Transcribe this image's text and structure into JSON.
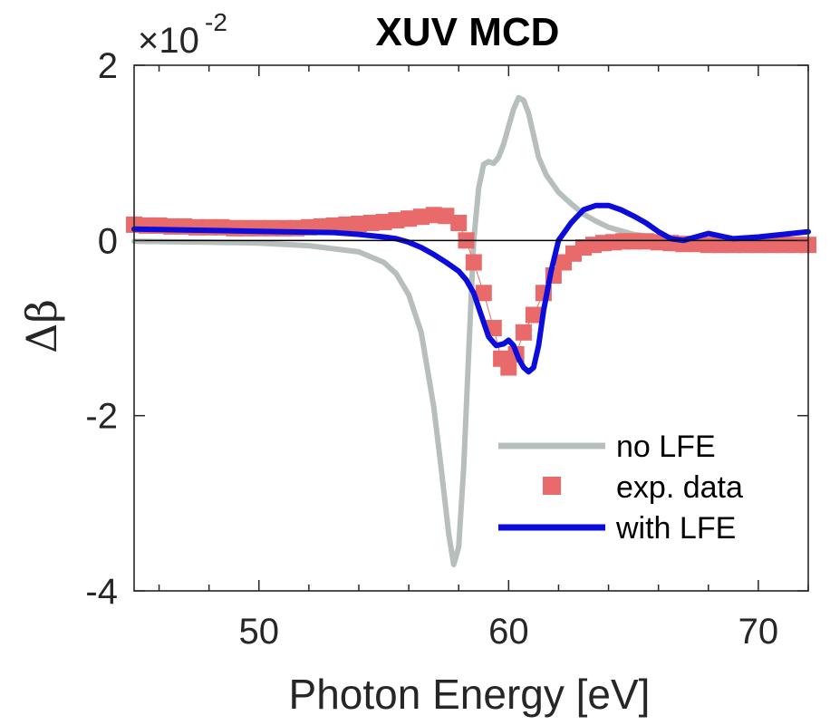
{
  "chart_data": {
    "type": "line",
    "title": "XUV MCD",
    "xlabel": "Photon Energy [eV]",
    "ylabel_symbol": "Δβ",
    "y_multiplier": "×10",
    "y_multiplier_exponent": "-2",
    "xlim": [
      45,
      72
    ],
    "ylim": [
      -4,
      2
    ],
    "xticks": [
      50,
      60,
      70
    ],
    "yticks": [
      -4,
      -2,
      0,
      2
    ],
    "xtick_labels": [
      "50",
      "60",
      "70"
    ],
    "ytick_labels": [
      "-4",
      "-2",
      "0",
      "2"
    ],
    "x_minor_step": 2,
    "grid": false,
    "zero_line": true,
    "legend_position": "lower-right",
    "series": [
      {
        "name": "no LFE",
        "style": "line",
        "color": "#b7bfbd",
        "x": [
          45,
          48,
          50,
          52,
          54,
          55,
          55.5,
          56,
          56.5,
          57,
          57.3,
          57.6,
          57.8,
          58.0,
          58.2,
          58.4,
          58.6,
          58.8,
          59.0,
          59.2,
          59.4,
          59.6,
          59.8,
          60.0,
          60.2,
          60.4,
          60.6,
          60.8,
          61.0,
          61.2,
          61.5,
          62,
          62.5,
          63,
          63.5,
          64,
          65,
          66,
          67,
          68,
          70,
          72
        ],
        "y": [
          -0.01,
          -0.02,
          -0.03,
          -0.06,
          -0.13,
          -0.25,
          -0.38,
          -0.62,
          -1.05,
          -1.9,
          -2.6,
          -3.35,
          -3.7,
          -3.5,
          -2.6,
          -1.3,
          0.0,
          0.6,
          0.87,
          0.9,
          0.88,
          0.95,
          1.1,
          1.3,
          1.5,
          1.63,
          1.6,
          1.45,
          1.2,
          0.95,
          0.75,
          0.55,
          0.42,
          0.3,
          0.22,
          0.15,
          0.07,
          0.03,
          0.01,
          -0.01,
          -0.03,
          -0.04
        ]
      },
      {
        "name": "exp. data",
        "style": "markers",
        "color": "#e86a6a",
        "x": [
          45,
          45.5,
          46,
          46.5,
          47,
          47.5,
          48,
          48.5,
          49,
          49.5,
          50,
          50.5,
          51,
          51.5,
          52,
          52.5,
          53,
          53.5,
          54,
          54.5,
          55,
          55.5,
          56,
          56.5,
          57,
          57.5,
          58,
          58.3,
          58.6,
          59,
          59.4,
          59.7,
          60,
          60.3,
          60.6,
          61,
          61.4,
          61.8,
          62.2,
          62.6,
          63,
          63.4,
          63.8,
          64.2,
          64.6,
          65,
          65.5,
          66,
          66.5,
          67,
          67.5,
          68,
          68.5,
          69,
          69.5,
          70,
          70.5,
          71,
          71.5,
          72
        ],
        "y": [
          0.18,
          0.17,
          0.17,
          0.16,
          0.16,
          0.15,
          0.15,
          0.15,
          0.14,
          0.14,
          0.14,
          0.14,
          0.14,
          0.14,
          0.15,
          0.16,
          0.17,
          0.18,
          0.19,
          0.2,
          0.21,
          0.23,
          0.25,
          0.27,
          0.29,
          0.28,
          0.2,
          0.0,
          -0.25,
          -0.6,
          -1.0,
          -1.35,
          -1.45,
          -1.3,
          -1.05,
          -0.85,
          -0.6,
          -0.4,
          -0.25,
          -0.15,
          -0.08,
          -0.05,
          -0.03,
          -0.02,
          -0.01,
          -0.01,
          -0.01,
          -0.02,
          -0.03,
          -0.04,
          -0.04,
          -0.05,
          -0.05,
          -0.05,
          -0.05,
          -0.05,
          -0.05,
          -0.05,
          -0.05,
          -0.05
        ]
      },
      {
        "name": "with LFE",
        "style": "line",
        "color": "#0d0ddb",
        "x": [
          45,
          47,
          49,
          51,
          53,
          54,
          55,
          55.5,
          56,
          56.5,
          57,
          57.5,
          58,
          58.3,
          58.6,
          58.9,
          59.2,
          59.5,
          59.8,
          60.0,
          60.2,
          60.4,
          60.6,
          60.8,
          61.0,
          61.2,
          61.4,
          61.7,
          62,
          62.5,
          63,
          63.5,
          64,
          64.5,
          65,
          65.5,
          66,
          66.5,
          67,
          68,
          68.5,
          69,
          70,
          71,
          72
        ],
        "y": [
          0.13,
          0.12,
          0.11,
          0.1,
          0.09,
          0.07,
          0.04,
          0.02,
          -0.02,
          -0.08,
          -0.16,
          -0.25,
          -0.35,
          -0.45,
          -0.6,
          -0.85,
          -1.1,
          -1.2,
          -1.18,
          -1.14,
          -1.2,
          -1.35,
          -1.45,
          -1.5,
          -1.45,
          -1.2,
          -0.8,
          -0.35,
          0.0,
          0.2,
          0.35,
          0.4,
          0.4,
          0.35,
          0.28,
          0.2,
          0.1,
          0.02,
          0.0,
          0.08,
          0.05,
          0.02,
          0.04,
          0.07,
          0.1
        ]
      }
    ]
  }
}
